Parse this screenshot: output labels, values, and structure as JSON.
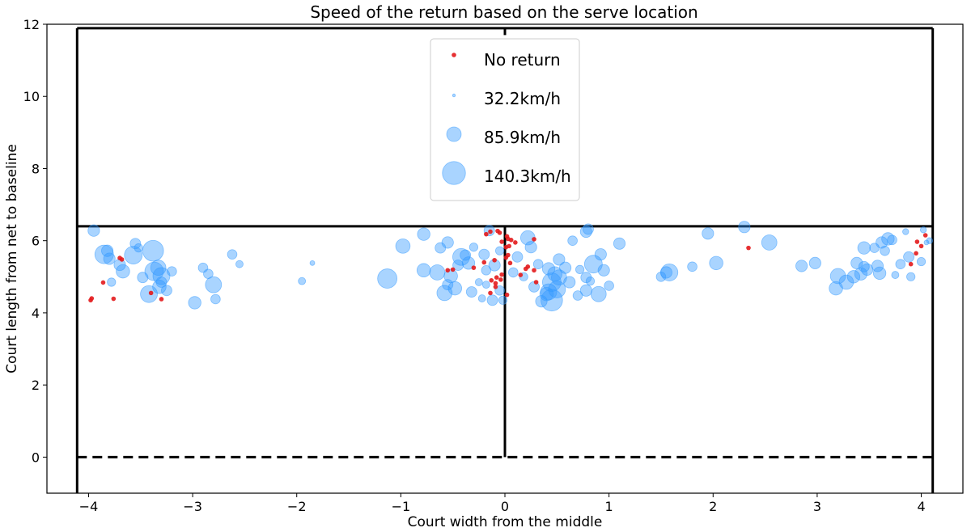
{
  "chart_data": {
    "type": "scatter",
    "title": "Speed of the return based on the serve location",
    "xlabel": "Court width from the middle",
    "ylabel": "Court length from net to baseline",
    "xlim": [
      -4.4,
      4.4
    ],
    "ylim": [
      -1,
      12
    ],
    "xticks": [
      -4,
      -3,
      -2,
      -1,
      0,
      1,
      2,
      3,
      4
    ],
    "xtick_labels": [
      "−4",
      "−3",
      "−2",
      "−1",
      "0",
      "1",
      "2",
      "3",
      "4"
    ],
    "yticks": [
      0,
      2,
      4,
      6,
      8,
      10,
      12
    ],
    "ytick_labels": [
      "0",
      "2",
      "4",
      "6",
      "8",
      "10",
      "12"
    ],
    "grid": false,
    "legend_position": "top-center",
    "colors": {
      "no_return": "#e31a1c",
      "return": "#3399ff"
    },
    "court_lines": {
      "sidelines_x": [
        -4.11,
        4.11
      ],
      "baseline_y": 11.89,
      "service_line_y": 6.4,
      "center_line": {
        "x": 0,
        "y_range": [
          0,
          6.4
        ]
      },
      "center_mark_y": [
        11.7,
        11.89
      ],
      "net_y": 0
    },
    "legend": [
      {
        "label": "No return",
        "kind": "no-return"
      },
      {
        "label": "32.2km/h",
        "speed": 32.2
      },
      {
        "label": "85.9km/h",
        "speed": 85.9
      },
      {
        "label": "140.3km/h",
        "speed": 140.3
      }
    ],
    "series": [
      {
        "name": "No return",
        "points": [
          [
            -3.98,
            4.35
          ],
          [
            -3.97,
            4.4
          ],
          [
            -3.86,
            4.84
          ],
          [
            -3.76,
            4.39
          ],
          [
            -3.7,
            5.52
          ],
          [
            -3.68,
            5.48
          ],
          [
            -3.4,
            4.55
          ],
          [
            -3.3,
            4.38
          ],
          [
            -0.55,
            5.18
          ],
          [
            -0.5,
            5.2
          ],
          [
            -0.3,
            5.25
          ],
          [
            -0.2,
            5.4
          ],
          [
            -0.18,
            6.18
          ],
          [
            -0.14,
            6.25
          ],
          [
            -0.14,
            4.55
          ],
          [
            -0.13,
            4.9
          ],
          [
            -0.1,
            5.46
          ],
          [
            -0.09,
            4.82
          ],
          [
            -0.09,
            4.72
          ],
          [
            -0.08,
            4.98
          ],
          [
            -0.07,
            6.27
          ],
          [
            -0.05,
            6.22
          ],
          [
            -0.04,
            4.92
          ],
          [
            -0.03,
            5.06
          ],
          [
            -0.03,
            5.97
          ],
          [
            0.01,
            5.53
          ],
          [
            0.01,
            5.82
          ],
          [
            0.02,
            6.12
          ],
          [
            0.02,
            4.5
          ],
          [
            0.03,
            5.6
          ],
          [
            0.03,
            6.05
          ],
          [
            0.04,
            5.85
          ],
          [
            0.05,
            5.38
          ],
          [
            0.06,
            6.02
          ],
          [
            0.1,
            5.95
          ],
          [
            0.15,
            5.05
          ],
          [
            0.2,
            5.22
          ],
          [
            0.22,
            5.28
          ],
          [
            0.28,
            6.04
          ],
          [
            0.28,
            5.18
          ],
          [
            0.3,
            4.85
          ],
          [
            2.34,
            5.8
          ],
          [
            3.9,
            5.35
          ],
          [
            3.95,
            5.65
          ],
          [
            3.96,
            5.97
          ],
          [
            4.0,
            5.85
          ],
          [
            4.04,
            6.15
          ]
        ]
      },
      {
        "name": "Return",
        "points": [
          [
            -3.95,
            6.28,
            70
          ],
          [
            -3.85,
            5.62,
            110
          ],
          [
            -3.82,
            5.72,
            70
          ],
          [
            -3.8,
            5.5,
            70
          ],
          [
            -3.78,
            4.85,
            55
          ],
          [
            -3.7,
            5.33,
            70
          ],
          [
            -3.67,
            5.15,
            80
          ],
          [
            -3.57,
            5.6,
            105
          ],
          [
            -3.55,
            5.92,
            65
          ],
          [
            -3.52,
            5.8,
            55
          ],
          [
            -3.48,
            4.98,
            65
          ],
          [
            -3.42,
            4.52,
            100
          ],
          [
            -3.38,
            5.72,
            125
          ],
          [
            -3.37,
            5.15,
            110
          ],
          [
            -3.33,
            5.25,
            90
          ],
          [
            -3.32,
            4.72,
            80
          ],
          [
            -3.3,
            5.02,
            100
          ],
          [
            -3.3,
            4.85,
            65
          ],
          [
            -3.25,
            4.62,
            65
          ],
          [
            -3.2,
            5.15,
            60
          ],
          [
            -2.98,
            4.28,
            75
          ],
          [
            -2.9,
            5.25,
            60
          ],
          [
            -2.85,
            5.08,
            60
          ],
          [
            -2.8,
            4.78,
            95
          ],
          [
            -2.78,
            4.38,
            60
          ],
          [
            -2.62,
            5.62,
            60
          ],
          [
            -2.55,
            5.35,
            50
          ],
          [
            -1.85,
            5.38,
            40
          ],
          [
            -1.95,
            4.88,
            50
          ],
          [
            -1.13,
            4.95,
            115
          ],
          [
            -0.98,
            5.85,
            85
          ],
          [
            -0.78,
            5.18,
            80
          ],
          [
            -0.78,
            6.18,
            75
          ],
          [
            -0.65,
            5.12,
            90
          ],
          [
            -0.62,
            5.8,
            65
          ],
          [
            -0.58,
            4.55,
            90
          ],
          [
            -0.55,
            4.78,
            65
          ],
          [
            -0.55,
            5.95,
            70
          ],
          [
            -0.52,
            5.02,
            80
          ],
          [
            -0.48,
            4.68,
            80
          ],
          [
            -0.45,
            5.32,
            65
          ],
          [
            -0.42,
            5.55,
            100
          ],
          [
            -0.38,
            5.6,
            65
          ],
          [
            -0.35,
            5.38,
            75
          ],
          [
            -0.32,
            4.58,
            65
          ],
          [
            -0.3,
            5.82,
            55
          ],
          [
            -0.25,
            4.85,
            50
          ],
          [
            -0.22,
            4.4,
            50
          ],
          [
            -0.2,
            5.62,
            65
          ],
          [
            -0.18,
            5.18,
            60
          ],
          [
            -0.18,
            4.78,
            50
          ],
          [
            -0.15,
            6.28,
            65
          ],
          [
            -0.12,
            4.35,
            65
          ],
          [
            -0.1,
            5.32,
            70
          ],
          [
            -0.05,
            4.62,
            60
          ],
          [
            -0.05,
            5.72,
            55
          ],
          [
            -0.02,
            4.35,
            55
          ],
          [
            0.08,
            5.12,
            60
          ],
          [
            0.12,
            5.55,
            65
          ],
          [
            0.18,
            5.0,
            55
          ],
          [
            0.22,
            6.08,
            85
          ],
          [
            0.25,
            5.82,
            70
          ],
          [
            0.28,
            4.72,
            65
          ],
          [
            0.32,
            5.35,
            60
          ],
          [
            0.35,
            4.32,
            70
          ],
          [
            0.4,
            4.52,
            80
          ],
          [
            0.42,
            5.22,
            75
          ],
          [
            0.42,
            4.58,
            95
          ],
          [
            0.45,
            4.85,
            110
          ],
          [
            0.45,
            4.35,
            130
          ],
          [
            0.48,
            5.08,
            85
          ],
          [
            0.5,
            4.65,
            100
          ],
          [
            0.52,
            4.98,
            90
          ],
          [
            0.52,
            5.48,
            70
          ],
          [
            0.58,
            5.25,
            70
          ],
          [
            0.62,
            4.85,
            70
          ],
          [
            0.65,
            6.0,
            60
          ],
          [
            0.7,
            4.48,
            60
          ],
          [
            0.72,
            5.2,
            55
          ],
          [
            0.78,
            4.98,
            65
          ],
          [
            0.78,
            6.25,
            70
          ],
          [
            0.78,
            4.62,
            70
          ],
          [
            0.8,
            6.32,
            65
          ],
          [
            0.82,
            4.88,
            55
          ],
          [
            0.85,
            5.35,
            105
          ],
          [
            0.9,
            4.52,
            90
          ],
          [
            0.92,
            5.62,
            70
          ],
          [
            0.95,
            5.18,
            70
          ],
          [
            1.0,
            4.75,
            60
          ],
          [
            1.1,
            5.92,
            70
          ],
          [
            1.5,
            5.0,
            60
          ],
          [
            1.55,
            5.12,
            70
          ],
          [
            1.58,
            5.12,
            100
          ],
          [
            1.8,
            5.28,
            60
          ],
          [
            1.95,
            6.2,
            70
          ],
          [
            2.03,
            5.38,
            80
          ],
          [
            2.3,
            6.38,
            70
          ],
          [
            2.54,
            5.95,
            90
          ],
          [
            2.85,
            5.3,
            70
          ],
          [
            2.98,
            5.38,
            70
          ],
          [
            3.18,
            4.68,
            80
          ],
          [
            3.2,
            5.02,
            90
          ],
          [
            3.28,
            4.85,
            85
          ],
          [
            3.35,
            5.0,
            75
          ],
          [
            3.38,
            5.38,
            70
          ],
          [
            3.42,
            5.08,
            75
          ],
          [
            3.45,
            5.8,
            75
          ],
          [
            3.45,
            5.28,
            65
          ],
          [
            3.48,
            5.2,
            70
          ],
          [
            3.55,
            5.8,
            60
          ],
          [
            3.58,
            5.3,
            70
          ],
          [
            3.6,
            5.1,
            75
          ],
          [
            3.62,
            5.95,
            70
          ],
          [
            3.65,
            5.72,
            60
          ],
          [
            3.68,
            6.05,
            75
          ],
          [
            3.72,
            6.02,
            60
          ],
          [
            3.75,
            5.05,
            50
          ],
          [
            3.8,
            5.35,
            60
          ],
          [
            3.85,
            6.25,
            45
          ],
          [
            3.88,
            5.55,
            65
          ],
          [
            3.9,
            5.0,
            55
          ],
          [
            4.0,
            5.42,
            55
          ],
          [
            4.02,
            6.3,
            45
          ],
          [
            4.05,
            5.95,
            40
          ],
          [
            4.08,
            6.0,
            45
          ]
        ]
      }
    ]
  }
}
